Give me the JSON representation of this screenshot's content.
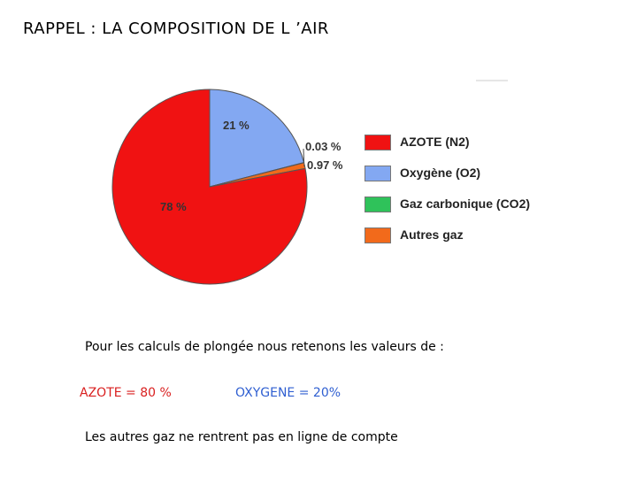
{
  "title": "RAPPEL : LA COMPOSITION DE L ’AIR",
  "chart_data": {
    "type": "pie",
    "slices": [
      {
        "name": "AZOTE (N2)",
        "value": 78,
        "label": "78 %",
        "color": "#f01212"
      },
      {
        "name": "Oxygène (O2)",
        "value": 21,
        "label": "21 %",
        "color": "#83a8f2"
      },
      {
        "name": "Gaz carbonique (CO2)",
        "value": 0.03,
        "label": "0.03 %",
        "color": "#2fc25a"
      },
      {
        "name": "Autres gaz",
        "value": 0.97,
        "label": "0.97 %",
        "color": "#f26a1b"
      }
    ],
    "legend_position": "right"
  },
  "notes": {
    "intro": "Pour les calculs de plongée nous retenons les valeurs de :",
    "azote": "AZOTE = 80 %",
    "oxygene": "OXYGENE = 20%",
    "footer": "Les autres gaz ne rentrent pas en ligne de compte"
  }
}
